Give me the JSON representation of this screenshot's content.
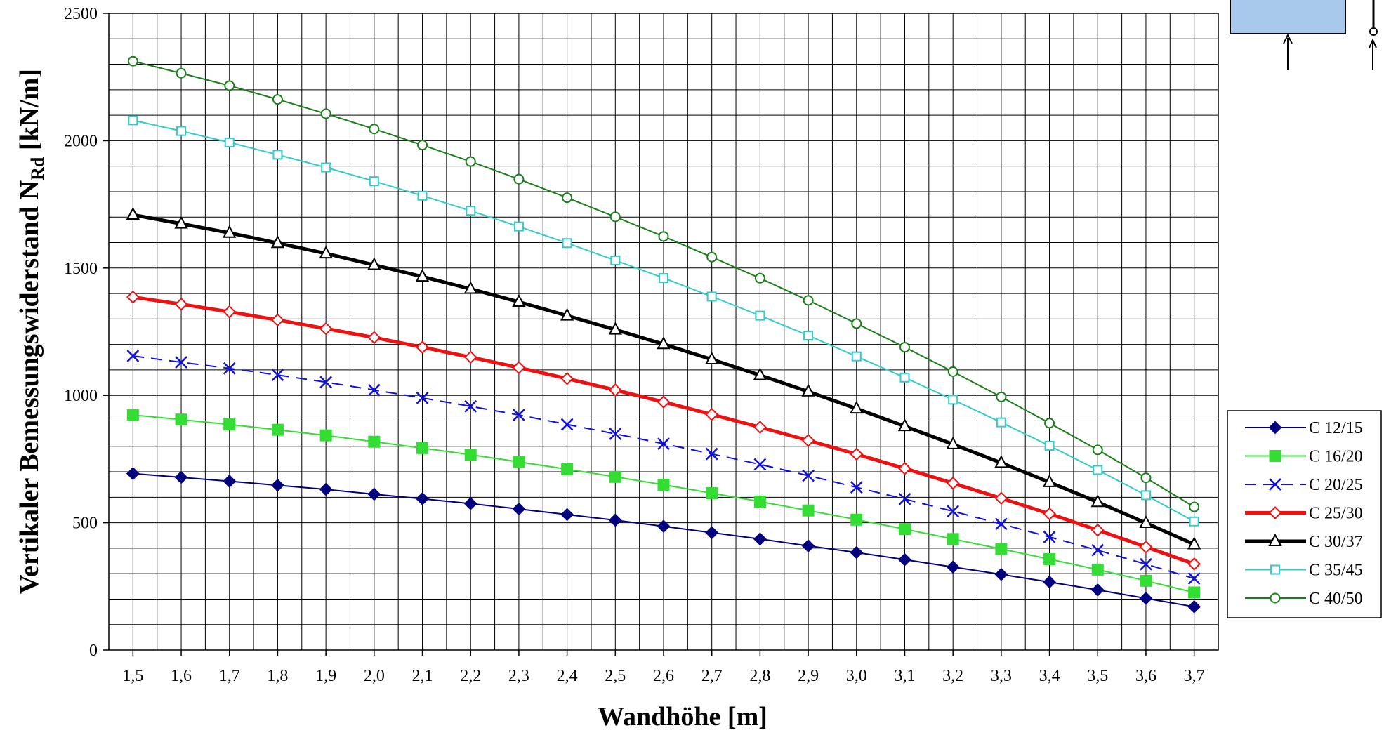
{
  "chart_data": {
    "type": "line",
    "title": "",
    "xlabel": "Wandhöhe [m]",
    "ylabel": {
      "prefix": "Vertikaler Bemessungswiderstand N",
      "subscript": "Rd",
      "suffix": " [kN/m]"
    },
    "x": [
      1.5,
      1.6,
      1.7,
      1.8,
      1.9,
      2.0,
      2.1,
      2.2,
      2.3,
      2.4,
      2.5,
      2.6,
      2.7,
      2.8,
      2.9,
      3.0,
      3.1,
      3.2,
      3.3,
      3.4,
      3.5,
      3.6,
      3.7
    ],
    "x_tick_labels": [
      "1,5",
      "1,6",
      "1,7",
      "1,8",
      "1,9",
      "2,0",
      "2,1",
      "2,2",
      "2,3",
      "2,4",
      "2,5",
      "2,6",
      "2,7",
      "2,8",
      "2,9",
      "3,0",
      "3,1",
      "3,2",
      "3,3",
      "3,4",
      "3,5",
      "3,6",
      "3,7"
    ],
    "y_ticks": [
      0,
      500,
      1000,
      1500,
      2000,
      2500
    ],
    "y_tick_labels": [
      "0",
      "500",
      "1000",
      "1500",
      "2000",
      "2500"
    ],
    "ylim": [
      0,
      2500
    ],
    "xlim": [
      1.45,
      3.75
    ],
    "grid": true,
    "legend_position": "right",
    "series": [
      {
        "name": "C 12/15",
        "color": "#00007f",
        "marker": "diamond-filled",
        "dashed": false,
        "width": 2,
        "values": [
          693,
          678,
          663,
          647,
          631,
          612,
          594,
          575,
          554,
          532,
          510,
          486,
          461,
          436,
          409,
          383,
          355,
          326,
          297,
          267,
          236,
          203,
          170
        ]
      },
      {
        "name": "C 16/20",
        "color": "#33dd33",
        "marker": "square-filled",
        "dashed": false,
        "width": 2,
        "values": [
          923,
          905,
          886,
          865,
          843,
          818,
          793,
          767,
          739,
          710,
          680,
          649,
          616,
          583,
          548,
          512,
          475,
          436,
          397,
          357,
          316,
          272,
          226
        ]
      },
      {
        "name": "C 20/25",
        "color": "#1010dd",
        "marker": "x",
        "dashed": true,
        "width": 2,
        "values": [
          1155,
          1130,
          1106,
          1080,
          1052,
          1021,
          990,
          957,
          923,
          886,
          849,
          810,
          770,
          729,
          685,
          639,
          593,
          545,
          495,
          444,
          392,
          337,
          281
        ]
      },
      {
        "name": "C 25/30",
        "color": "#ee1111",
        "marker": "diamond-open",
        "dashed": false,
        "width": 5,
        "values": [
          1386,
          1358,
          1328,
          1296,
          1262,
          1227,
          1189,
          1150,
          1109,
          1066,
          1021,
          974,
          925,
          875,
          823,
          769,
          713,
          655,
          596,
          535,
          471,
          405,
          338
        ]
      },
      {
        "name": "C 30/37",
        "color": "#000000",
        "marker": "triangle-open",
        "dashed": false,
        "width": 5,
        "values": [
          1709,
          1674,
          1638,
          1598,
          1557,
          1512,
          1466,
          1418,
          1367,
          1313,
          1258,
          1201,
          1141,
          1079,
          1015,
          948,
          879,
          808,
          735,
          659,
          581,
          499,
          415
        ]
      },
      {
        "name": "C 35/45",
        "color": "#33cccc",
        "marker": "square-open",
        "dashed": false,
        "width": 2,
        "values": [
          2080,
          2038,
          1993,
          1945,
          1895,
          1841,
          1784,
          1725,
          1663,
          1598,
          1530,
          1461,
          1388,
          1313,
          1235,
          1153,
          1070,
          983,
          894,
          802,
          707,
          608,
          505
        ]
      },
      {
        "name": "C 40/50",
        "color": "#1a7f1a",
        "marker": "circle-open",
        "dashed": false,
        "width": 2,
        "values": [
          2312,
          2265,
          2216,
          2162,
          2106,
          2046,
          1983,
          1918,
          1849,
          1776,
          1701,
          1624,
          1543,
          1460,
          1373,
          1282,
          1189,
          1093,
          994,
          891,
          786,
          676,
          562
        ]
      }
    ]
  },
  "colors": {
    "plot_background": "#ffffff",
    "grid": "#000000",
    "inset_fill": "#a8c8ec"
  }
}
